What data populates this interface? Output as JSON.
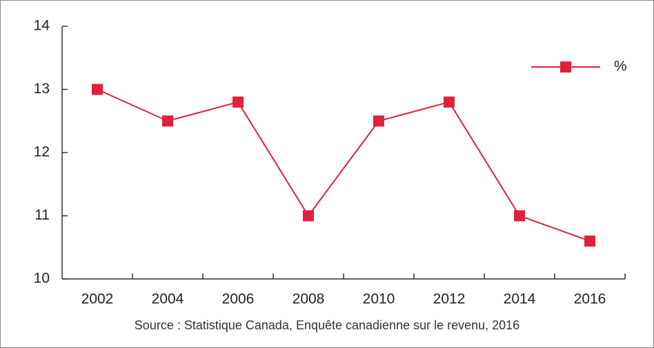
{
  "chart_data": {
    "type": "line",
    "categories": [
      "2002",
      "2004",
      "2006",
      "2008",
      "2010",
      "2012",
      "2014",
      "2016"
    ],
    "series": [
      {
        "name": "%",
        "color": "#e0203c",
        "values": [
          13.0,
          12.5,
          12.8,
          11.0,
          12.5,
          12.8,
          11.0,
          10.6
        ]
      }
    ],
    "ylim": [
      10,
      14
    ],
    "yticks": [
      10,
      11,
      12,
      13,
      14
    ],
    "legend": "upper right",
    "source": "Source : Statistique Canada, Enquête canadienne sur le revenu, 2016"
  }
}
